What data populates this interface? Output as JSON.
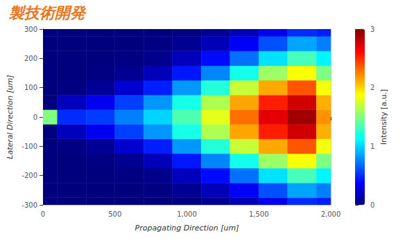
{
  "chart_data": {
    "type": "surface",
    "title": "製技術開発",
    "x_label": "Propagating Direction [um]",
    "y_label": "Lateral Direction [um]",
    "z_label": "Intensity [a.u.]",
    "x": [
      0,
      200,
      400,
      600,
      800,
      1000,
      1200,
      1400,
      1600,
      1800,
      2000
    ],
    "y": [
      -300,
      -250,
      -200,
      -150,
      -100,
      -50,
      0,
      50,
      100,
      150,
      200,
      250,
      300
    ],
    "intensity": [
      [
        0,
        0,
        0,
        0,
        0,
        0,
        1.5,
        0,
        0,
        0,
        0,
        0,
        0
      ],
      [
        0,
        0,
        0,
        0,
        0.01,
        0.18,
        0.5,
        0.18,
        0.01,
        0,
        0,
        0,
        0
      ],
      [
        0,
        0,
        0,
        0.01,
        0.07,
        0.33,
        0.55,
        0.33,
        0.07,
        0.01,
        0,
        0,
        0
      ],
      [
        0,
        0,
        0.01,
        0.05,
        0.23,
        0.56,
        0.75,
        0.56,
        0.23,
        0.05,
        0.01,
        0,
        0
      ],
      [
        0,
        0.01,
        0.04,
        0.17,
        0.46,
        0.82,
        1.0,
        0.82,
        0.46,
        0.17,
        0.04,
        0.01,
        0
      ],
      [
        0.01,
        0.06,
        0.18,
        0.44,
        0.82,
        1.19,
        1.35,
        1.19,
        0.82,
        0.44,
        0.18,
        0.06,
        0.01
      ],
      [
        0.06,
        0.17,
        0.4,
        0.77,
        1.23,
        1.64,
        1.8,
        1.64,
        1.23,
        0.77,
        0.4,
        0.17,
        0.06
      ],
      [
        0.16,
        0.36,
        0.71,
        1.18,
        1.71,
        2.14,
        2.3,
        2.14,
        1.71,
        1.18,
        0.71,
        0.36,
        0.16
      ],
      [
        0.32,
        0.61,
        1.04,
        1.58,
        2.13,
        2.54,
        2.7,
        2.54,
        2.13,
        1.58,
        1.04,
        0.61,
        0.32
      ],
      [
        0.5,
        0.86,
        1.33,
        1.86,
        2.38,
        2.76,
        2.9,
        2.76,
        2.38,
        1.86,
        1.33,
        0.86,
        0.5
      ],
      [
        0.46,
        0.75,
        1.1,
        1.49,
        1.85,
        2.11,
        2.2,
        2.11,
        1.85,
        1.49,
        1.1,
        0.75,
        0.46
      ]
    ],
    "xlim": [
      0,
      2000
    ],
    "xticks": [
      0,
      500,
      1000,
      1500,
      2000
    ],
    "ylim": [
      -300,
      300
    ],
    "yticks": [
      -300,
      -200,
      -100,
      0,
      100,
      200,
      300
    ],
    "zlim": [
      0,
      3
    ],
    "zticks": [
      0,
      1,
      2,
      3
    ],
    "grid": true
  }
}
